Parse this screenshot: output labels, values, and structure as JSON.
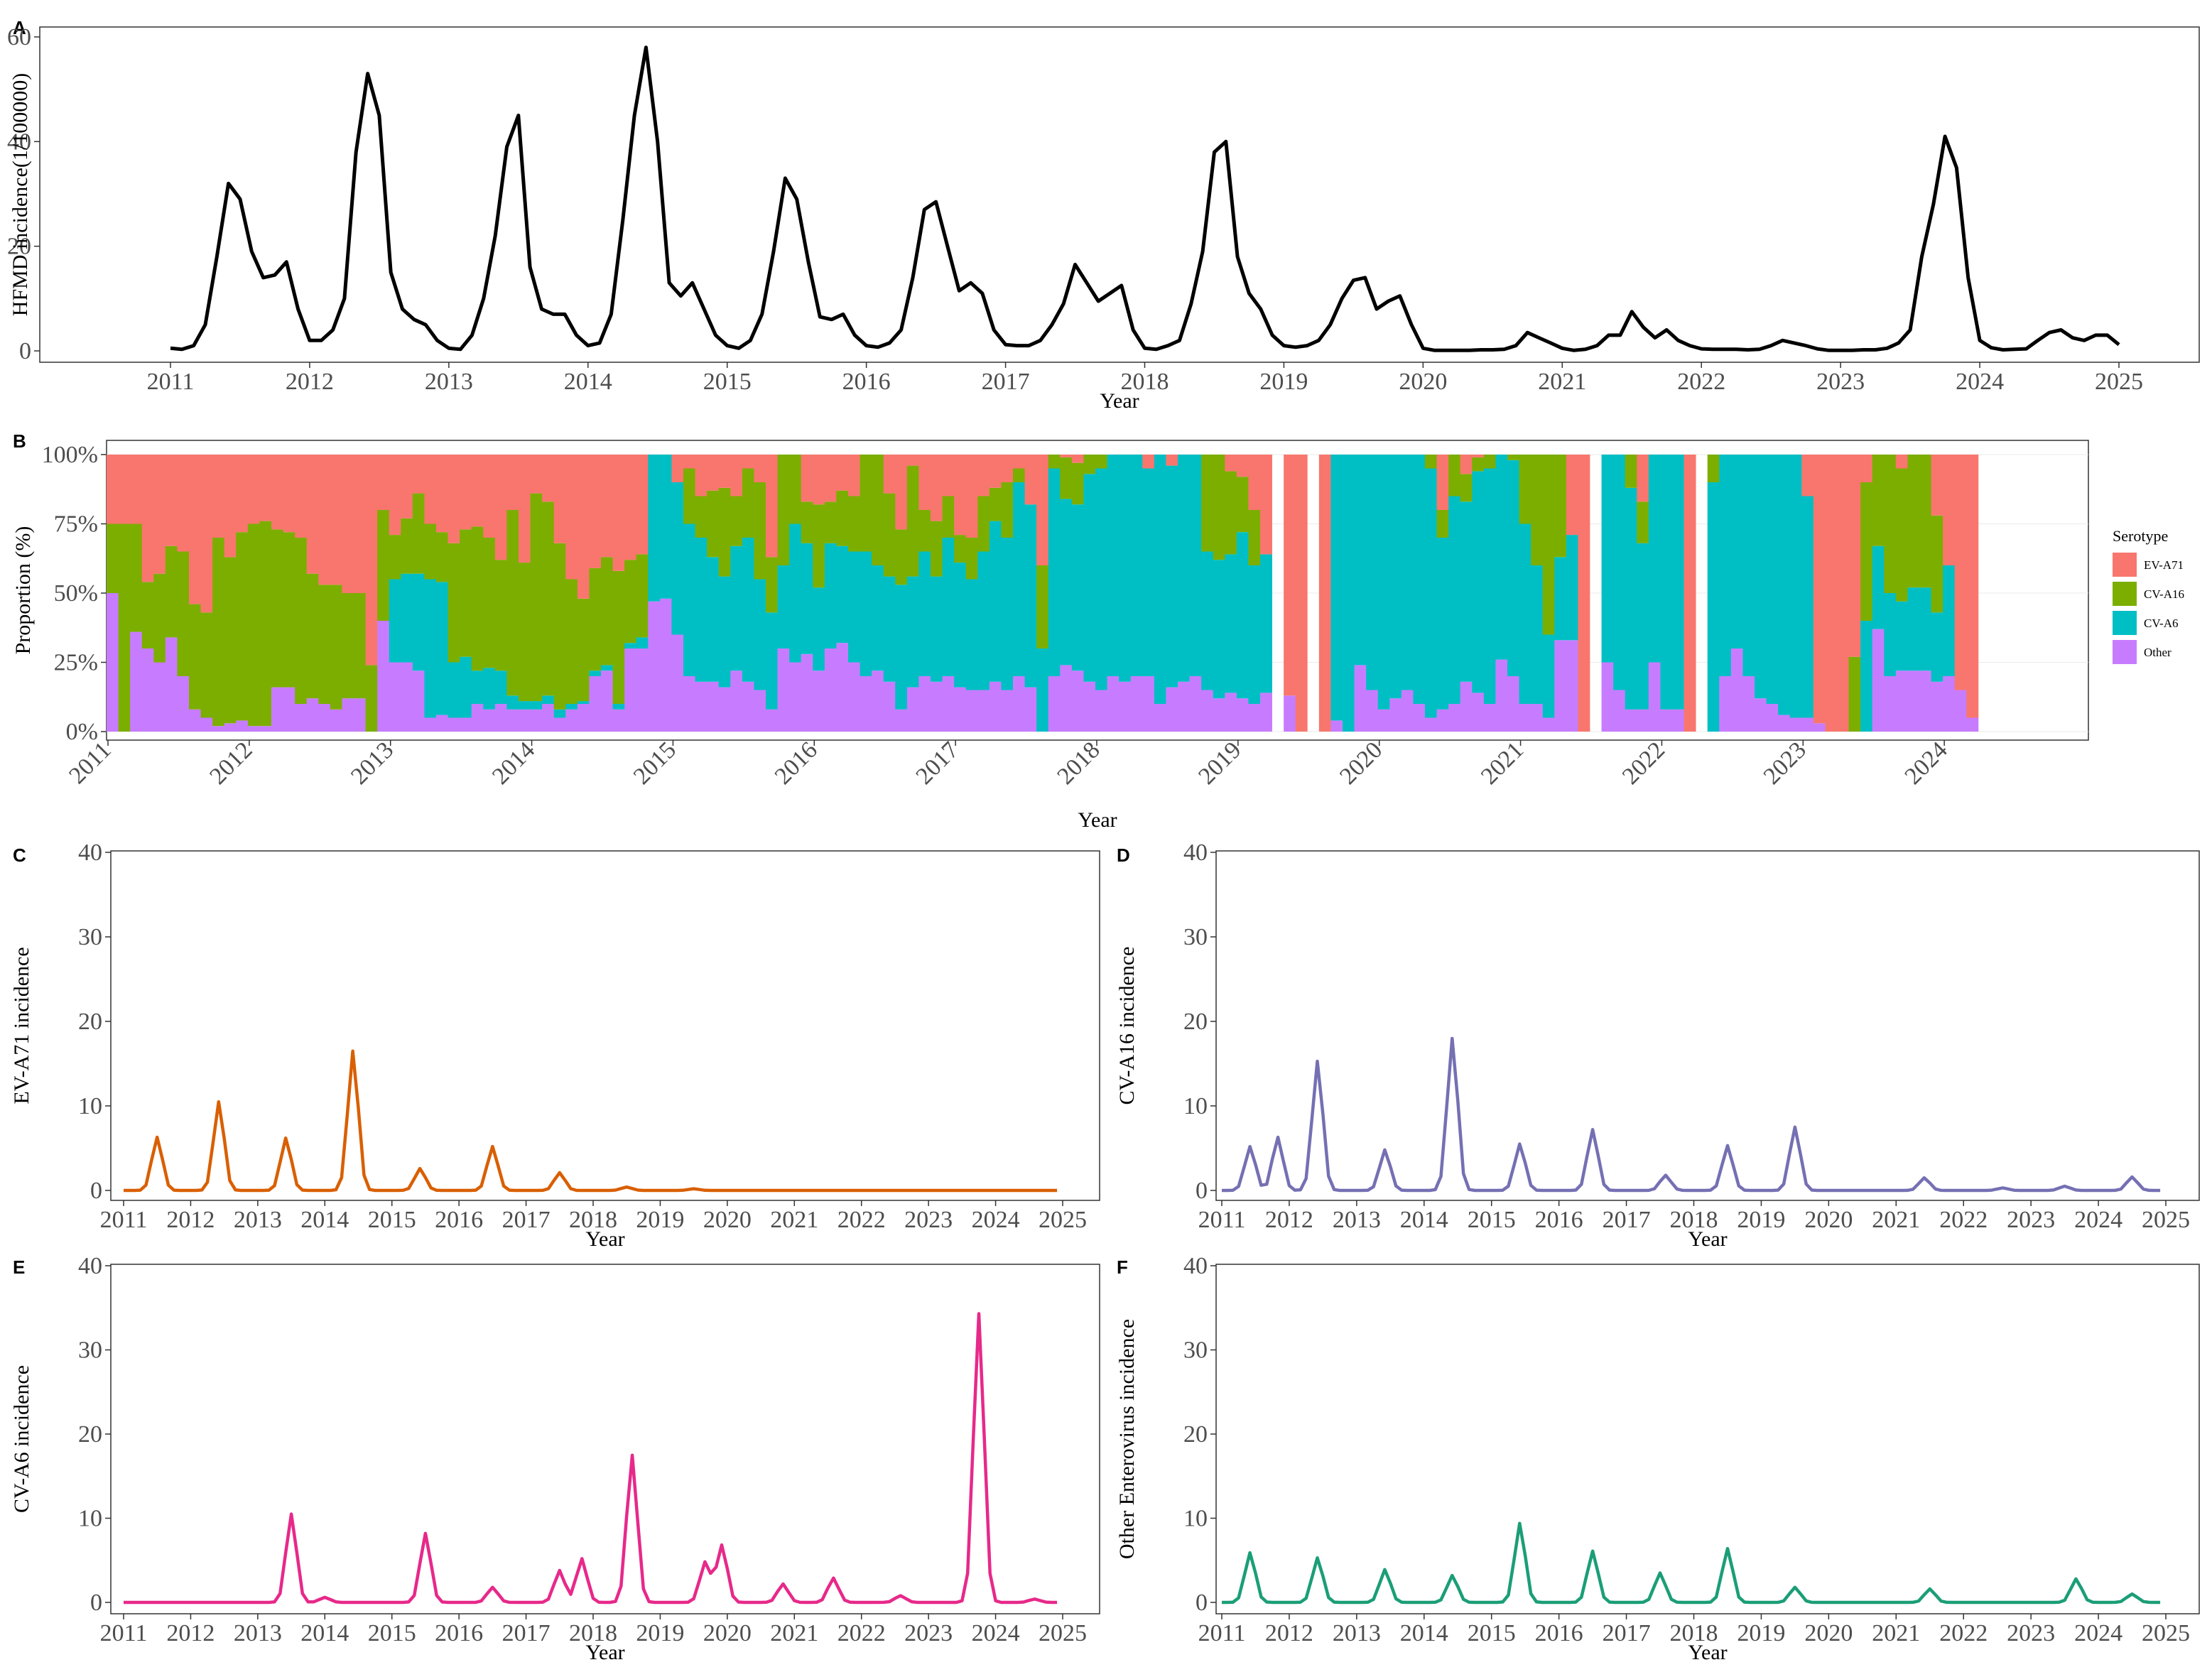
{
  "chart_data": [
    {
      "panel": "A",
      "type": "line",
      "xlabel": "Year",
      "ylabel": "HFMD incidence(1/100000)",
      "x_ticks": [
        "2011",
        "2012",
        "2013",
        "2014",
        "2015",
        "2016",
        "2017",
        "2018",
        "2019",
        "2020",
        "2021",
        "2022",
        "2023",
        "2024",
        "2025"
      ],
      "y_ticks": [
        "0",
        "20",
        "40",
        "60"
      ],
      "xlim": [
        2010.33,
        2025.5
      ],
      "ylim": [
        -3,
        61
      ],
      "grid": false,
      "color": "#000000",
      "series": [
        {
          "x_start": 2011.0,
          "x_step": 0.0833333,
          "values": [
            0.5,
            0.3,
            1,
            5,
            18,
            32,
            29,
            19,
            14,
            14.5,
            17,
            8,
            2,
            2,
            4,
            10,
            38,
            53,
            45,
            15,
            8,
            6,
            5,
            2,
            0.5,
            0.3,
            3,
            10,
            22,
            39,
            45,
            16,
            8,
            7,
            7,
            3,
            1,
            1.5,
            7,
            25,
            45,
            58,
            40,
            13,
            10.5,
            13,
            8,
            3,
            1,
            0.5,
            2,
            7,
            19,
            33,
            29,
            17,
            6.5,
            6,
            7,
            3,
            1,
            0.7,
            1.5,
            4,
            14,
            27,
            28.5,
            20,
            11.5,
            13,
            11,
            4,
            1.2,
            1,
            1,
            2,
            5,
            9,
            16.5,
            13,
            9.5,
            11,
            12.5,
            4,
            0.5,
            0.3,
            1,
            2,
            9,
            19,
            38,
            40,
            18,
            11,
            8,
            3,
            1,
            0.7,
            1,
            2,
            5,
            10,
            13.5,
            14,
            8,
            9.5,
            10.5,
            5,
            0.5,
            0.1,
            0.1,
            0.1,
            0.1,
            0.2,
            0.2,
            0.3,
            1,
            3.5,
            2.5,
            1.5,
            0.5,
            0.1,
            0.3,
            1,
            3,
            3,
            7.5,
            4.5,
            2.5,
            4,
            2,
            1,
            0.4,
            0.3,
            0.3,
            0.3,
            0.2,
            0.3,
            1,
            2,
            1.5,
            1,
            0.4,
            0.1,
            0.1,
            0.1,
            0.2,
            0.2,
            0.5,
            1.5,
            4,
            18,
            28,
            41,
            35,
            14,
            2,
            0.6,
            0.2,
            0.3,
            0.4,
            2,
            3.5,
            4,
            2.5,
            2,
            3,
            3,
            1.2
          ]
        }
      ]
    },
    {
      "panel": "B",
      "type": "bar",
      "stacked": true,
      "xlabel": "Year",
      "ylabel": "Proportion (%)",
      "x_ticks": [
        "2011",
        "2012",
        "2013",
        "2014",
        "2015",
        "2016",
        "2017",
        "2018",
        "2019",
        "2020",
        "2021",
        "2022",
        "2023",
        "2024"
      ],
      "y_ticks": [
        "0%",
        "25%",
        "50%",
        "75%",
        "100%"
      ],
      "legend_title": "Serotype",
      "legend_position": "right",
      "x_start": 2011.0,
      "x_step": 0.0833333,
      "series": [
        {
          "name": "EV-A71",
          "color": "#F8766D"
        },
        {
          "name": "CV-A16",
          "color": "#7CAE00"
        },
        {
          "name": "CV-A6",
          "color": "#00BFC4"
        },
        {
          "name": "Other",
          "color": "#C77CFF"
        }
      ],
      "missing_months_note": "blank months shown as gaps",
      "other_pct": [
        50,
        0,
        36,
        30,
        25,
        34,
        20,
        8,
        5,
        2,
        3,
        4,
        2,
        2,
        16,
        16,
        10,
        12,
        10,
        8,
        12,
        12,
        0,
        40,
        25,
        25,
        22,
        5,
        6,
        5,
        5,
        10,
        8,
        10,
        8,
        8,
        8,
        10,
        5,
        8,
        10,
        20,
        22,
        8,
        30,
        30,
        47,
        48,
        35,
        20,
        18,
        18,
        16,
        22,
        18,
        15,
        8,
        30,
        25,
        28,
        22,
        30,
        32,
        25,
        20,
        22,
        18,
        8,
        16,
        20,
        18,
        20,
        16,
        15,
        15,
        18,
        15,
        20,
        16,
        0,
        20,
        24,
        22,
        18,
        15,
        20,
        18,
        20,
        20,
        10,
        16,
        18,
        20,
        15,
        12,
        14,
        12,
        10,
        14,
        null,
        13,
        0,
        null,
        0,
        4,
        0,
        24,
        15,
        8,
        12,
        15,
        10,
        5,
        8,
        10,
        18,
        14,
        10,
        26,
        20,
        10,
        10,
        5,
        33,
        33,
        0,
        null,
        25,
        15,
        8,
        8,
        25,
        8,
        8,
        0,
        null,
        0,
        20,
        30,
        20,
        12,
        10,
        6,
        5,
        5,
        3,
        0,
        0,
        0,
        0,
        37,
        20,
        22,
        22,
        22,
        18,
        20,
        15,
        5
      ],
      "cva6_pct": [
        0,
        0,
        0,
        0,
        0,
        0,
        0,
        0,
        0,
        0,
        0,
        0,
        0,
        0,
        0,
        0,
        0,
        0,
        0,
        0,
        0,
        0,
        0,
        0,
        30,
        32,
        35,
        50,
        48,
        20,
        22,
        12,
        15,
        12,
        5,
        3,
        3,
        3,
        3,
        2,
        1,
        2,
        2,
        2,
        2,
        4,
        55,
        52,
        55,
        55,
        52,
        45,
        40,
        45,
        52,
        40,
        35,
        30,
        50,
        40,
        30,
        38,
        35,
        40,
        45,
        38,
        38,
        45,
        40,
        45,
        38,
        50,
        45,
        40,
        50,
        58,
        55,
        70,
        66,
        30,
        75,
        60,
        60,
        75,
        80,
        88,
        90,
        85,
        75,
        90,
        80,
        88,
        85,
        50,
        50,
        50,
        60,
        50,
        50,
        null,
        0,
        0,
        null,
        0,
        100,
        100,
        100,
        100,
        95,
        90,
        100,
        100,
        90,
        62,
        75,
        65,
        80,
        85,
        90,
        78,
        65,
        50,
        30,
        30,
        38,
        null,
        90,
        92,
        100,
        80,
        60,
        85,
        100,
        100,
        null,
        100,
        90,
        85,
        98,
        98,
        100,
        97,
        98,
        95,
        80,
        0,
        0,
        0,
        0,
        40,
        30,
        30,
        25,
        30,
        30,
        25,
        40
      ],
      "cva16_pct": [
        25,
        75,
        39,
        24,
        32,
        33,
        45,
        38,
        38,
        68,
        60,
        68,
        73,
        74,
        57,
        56,
        60,
        45,
        43,
        45,
        38,
        38,
        24,
        40,
        16,
        20,
        29,
        20,
        18,
        43,
        46,
        52,
        47,
        40,
        67,
        50,
        75,
        70,
        60,
        45,
        37,
        37,
        39,
        48,
        30,
        30,
        8,
        -2,
        -2,
        20,
        15,
        24,
        32,
        18,
        25,
        35,
        20,
        40,
        30,
        15,
        30,
        15,
        20,
        20,
        45,
        40,
        30,
        20,
        40,
        15,
        20,
        15,
        10,
        15,
        20,
        12,
        20,
        5,
        0,
        30,
        15,
        15,
        15,
        10,
        10,
        0,
        5,
        10,
        0,
        10,
        0,
        0,
        30,
        35,
        40,
        30,
        20,
        20,
        null,
        85,
        0,
        null,
        100,
        0,
        0,
        0,
        0,
        5,
        10,
        0,
        0,
        10,
        38,
        10,
        20,
        10,
        5,
        5,
        10,
        21,
        40,
        67,
        67,
        37,
        null,
        0,
        0,
        0,
        0,
        40,
        15,
        0,
        0,
        null,
        0,
        10,
        15,
        0,
        0,
        0,
        0,
        0,
        0,
        0,
        0,
        0,
        0,
        0,
        27,
        50,
        48,
        53,
        48,
        52,
        57,
        35
      ],
      "eva71_pct": [
        25,
        25,
        25,
        46,
        43,
        33,
        35,
        54,
        57,
        30,
        37,
        28,
        25,
        24,
        27,
        28,
        30,
        43,
        47,
        47,
        50,
        50,
        76,
        20,
        29,
        23,
        14,
        25,
        28,
        32,
        27,
        26,
        30,
        38,
        20,
        39,
        14,
        17,
        32,
        45,
        52,
        41,
        37,
        42,
        38,
        36,
        0,
        2,
        8,
        5,
        15,
        13,
        12,
        15,
        5,
        10,
        37,
        0,
        5,
        17,
        18,
        15,
        13,
        15,
        15,
        0,
        14,
        17,
        4,
        20,
        24,
        15,
        29,
        30,
        15,
        12,
        10,
        5,
        18,
        70,
        0,
        1,
        3,
        7,
        5,
        2,
        2,
        0,
        5,
        0,
        4,
        4,
        5,
        5,
        3,
        0,
        0,
        0,
        0,
        null,
        2,
        0,
        null,
        0,
        0,
        0,
        0,
        0,
        0,
        0,
        0,
        0,
        0,
        0,
        1,
        5,
        0,
        0,
        0,
        2,
        0,
        0,
        0,
        0,
        0,
        null,
        10,
        0,
        0,
        0,
        0,
        0,
        0,
        0,
        null,
        0,
        0,
        0,
        2,
        2,
        0,
        3,
        2,
        0,
        15,
        0,
        0,
        0,
        0,
        0,
        0,
        0,
        0,
        0,
        0,
        0,
        0
      ]
    },
    {
      "panel": "C",
      "type": "line",
      "xlabel": "Year",
      "ylabel": "EV-A71  incidence",
      "x_ticks": [
        "2011",
        "2012",
        "2013",
        "2014",
        "2015",
        "2016",
        "2017",
        "2018",
        "2019",
        "2020",
        "2021",
        "2022",
        "2023",
        "2024",
        "2025"
      ],
      "y_ticks": [
        "0",
        "10",
        "20",
        "30",
        "40"
      ],
      "ylim": [
        0,
        40
      ],
      "color": "#D95F02",
      "peaks": [
        [
          2011.5,
          6.3
        ],
        [
          2012.42,
          10.5
        ],
        [
          2013.42,
          6.2
        ],
        [
          2014.42,
          16.5
        ],
        [
          2015.42,
          2.6
        ],
        [
          2016.5,
          5.2
        ],
        [
          2017.5,
          2.1
        ],
        [
          2018.5,
          0.4
        ],
        [
          2019.5,
          0.2
        ]
      ]
    },
    {
      "panel": "D",
      "type": "line",
      "xlabel": "Year",
      "ylabel": "CV-A16  incidence",
      "x_ticks": [
        "2011",
        "2012",
        "2013",
        "2014",
        "2015",
        "2016",
        "2017",
        "2018",
        "2019",
        "2020",
        "2021",
        "2022",
        "2023",
        "2024",
        "2025"
      ],
      "y_ticks": [
        "0",
        "10",
        "20",
        "30",
        "40"
      ],
      "ylim": [
        0,
        40
      ],
      "color": "#7570B3",
      "peaks": [
        [
          2011.42,
          5.2
        ],
        [
          2011.83,
          6.3
        ],
        [
          2012.42,
          15.3
        ],
        [
          2013.42,
          4.8
        ],
        [
          2014.42,
          18
        ],
        [
          2015.42,
          5.5
        ],
        [
          2016.5,
          7.2
        ],
        [
          2017.58,
          1.8
        ],
        [
          2018.5,
          5.3
        ],
        [
          2019.5,
          7.5
        ],
        [
          2021.42,
          1.5
        ],
        [
          2022.58,
          0.3
        ],
        [
          2023.5,
          0.5
        ],
        [
          2024.5,
          1.6
        ]
      ]
    },
    {
      "panel": "E",
      "type": "line",
      "xlabel": "Year",
      "ylabel": "CV-A6  incidence",
      "x_ticks": [
        "2011",
        "2012",
        "2013",
        "2014",
        "2015",
        "2016",
        "2017",
        "2018",
        "2019",
        "2020",
        "2021",
        "2022",
        "2023",
        "2024",
        "2025"
      ],
      "y_ticks": [
        "0",
        "10",
        "20",
        "30",
        "40"
      ],
      "ylim": [
        0,
        40
      ],
      "color": "#E7298A",
      "peaks": [
        [
          2013.5,
          10.5
        ],
        [
          2014.0,
          0.6
        ],
        [
          2015.5,
          8.2
        ],
        [
          2016.5,
          1.8
        ],
        [
          2017.5,
          3.8
        ],
        [
          2017.83,
          5.2
        ],
        [
          2018.58,
          17.5
        ],
        [
          2019.67,
          4.8
        ],
        [
          2019.92,
          6.8
        ],
        [
          2020.83,
          2.2
        ],
        [
          2021.58,
          2.9
        ],
        [
          2022.58,
          0.8
        ],
        [
          2023.75,
          34.3
        ],
        [
          2024.58,
          0.4
        ]
      ]
    },
    {
      "panel": "F",
      "type": "line",
      "xlabel": "Year",
      "ylabel": "Other Enterovirus  incidence",
      "x_ticks": [
        "2011",
        "2012",
        "2013",
        "2014",
        "2015",
        "2016",
        "2017",
        "2018",
        "2019",
        "2020",
        "2021",
        "2022",
        "2023",
        "2024",
        "2025"
      ],
      "y_ticks": [
        "0",
        "10",
        "20",
        "30",
        "40"
      ],
      "ylim": [
        0,
        40
      ],
      "color": "#1B9E77",
      "peaks": [
        [
          2011.42,
          5.9
        ],
        [
          2012.42,
          5.3
        ],
        [
          2013.42,
          3.9
        ],
        [
          2014.42,
          3.2
        ],
        [
          2015.42,
          9.4
        ],
        [
          2016.5,
          6.1
        ],
        [
          2017.5,
          3.5
        ],
        [
          2018.5,
          6.4
        ],
        [
          2019.5,
          1.8
        ],
        [
          2021.5,
          1.6
        ],
        [
          2023.67,
          2.8
        ],
        [
          2024.5,
          1.0
        ]
      ]
    }
  ],
  "legend": {
    "title": "Serotype",
    "items": [
      "EV-A71",
      "CV-A16",
      "CV-A6",
      "Other"
    ],
    "colors": [
      "#F8766D",
      "#7CAE00",
      "#00BFC4",
      "#C77CFF"
    ]
  }
}
